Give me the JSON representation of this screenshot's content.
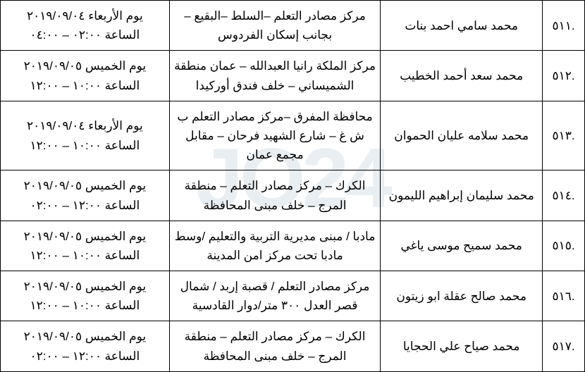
{
  "watermark": "JO24",
  "rows": [
    {
      "id": ".٥١١",
      "name": "محمد سامي احمد بنات",
      "location": "مركز مصادر التعلم –السلط –البقيع –بجانب إسكان الفردوس",
      "day": "يوم الأربعاء ٢٠١٩/٠٩/٠٤",
      "time": "الساعة ٠٢:٠٠ – ٠٤:٠٠"
    },
    {
      "id": ".٥١٢",
      "name": "محمد سعد أحمد الخطيب",
      "location": "مركز الملكة رانيا العبدالله – عمان منطقة الشميساني – خلف فندق أوركيدا",
      "day": "يوم الخميس ٢٠١٩/٠٩/٠٥",
      "time": "الساعة ١٠:٠٠ – ١٢:٠٠"
    },
    {
      "id": ".٥١٣",
      "name": "محمد سلامه عليان الحموان",
      "location": "محافظة المفرق –مركز مصادر التعلم ب ش غ – شارع الشهيد فرحان – مقابل مجمع عمان",
      "day": "يوم الأربعاء ٢٠١٩/٠٩/٠٤",
      "time": "الساعة ١٠:٠٠ – ١٢:٠٠"
    },
    {
      "id": ".٥١٤",
      "name": "محمد سليمان إبراهيم الليمون",
      "location": "الكرك – مركز مصادر التعلم – منطقة المرج – خلف مبنى المحافظة",
      "day": "يوم الخميس ٢٠١٩/٠٩/٠٥",
      "time": "الساعة ١٢:٠٠ – ٠٢:٠٠"
    },
    {
      "id": ".٥١٥",
      "name": "محمد سميح موسى ياغي",
      "location": "مادبا / مبنى مديرية التربية والتعليم /وسط مادبا تحت مركز امن المدينة",
      "day": "يوم الخميس ٢٠١٩/٠٩/٠٥",
      "time": "الساعة ١٠:٠٠ – ١٢:٠٠"
    },
    {
      "id": ".٥١٦",
      "name": "محمد صالح عقلة ابو زيتون",
      "location": "مركز مصادر التعلم / قصبة إربد / شمال قصر العدل ٣٠٠ متر/دوار القادسية",
      "day": "يوم الخميس ٢٠١٩/٠٩/٠٥",
      "time": "الساعة ١٠:٠٠ – ١٢:٠٠"
    },
    {
      "id": ".٥١٧",
      "name": "محمد صياح علي الحجايا",
      "location": "الكرك – مركز مصادر التعلم – منطقة المرج – خلف مبنى المحافظة",
      "day": "يوم الخميس ٢٠١٩/٠٩/٠٥",
      "time": "الساعة ١٢:٠٠ – ٠٢:٠٠"
    }
  ]
}
